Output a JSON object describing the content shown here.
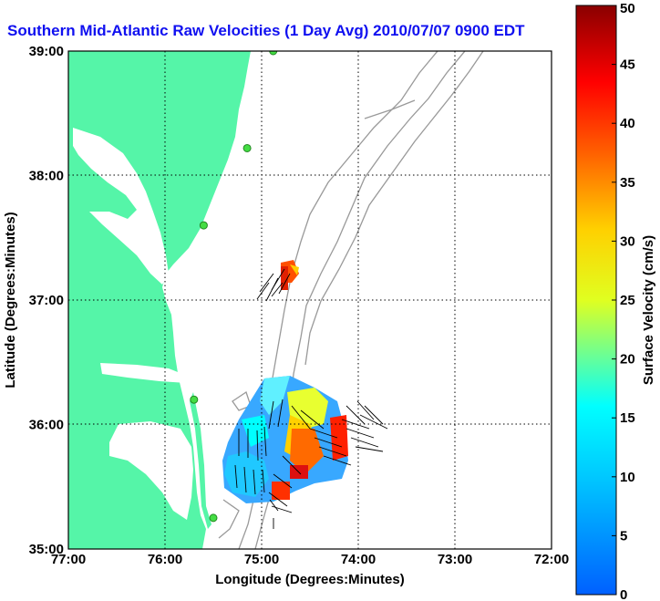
{
  "title": "Southern Mid-Atlantic Raw Velocities (1 Day Avg) 2010/07/07 0900 EDT",
  "map": {
    "x_axis": {
      "label": "Longitude (Degrees:Minutes)",
      "ticks": [
        "77:00",
        "76:00",
        "75:00",
        "74:00",
        "73:00",
        "72:00"
      ],
      "values": [
        -77,
        -76,
        -75,
        -74,
        -73,
        -72
      ]
    },
    "y_axis": {
      "label": "Latitude (Degrees:Minutes)",
      "ticks": [
        "39:00",
        "38:00",
        "37:00",
        "36:00",
        "35:00"
      ],
      "values": [
        39,
        38,
        37,
        36,
        35
      ]
    },
    "extent": {
      "lon": [
        -77,
        -72
      ],
      "lat": [
        35,
        39
      ]
    },
    "grid": "dotted",
    "colors": {
      "land": "#55f5a8",
      "water": "#ffffff",
      "bathymetry": "#999999",
      "arrows": "#000000",
      "station": "#44dd44"
    },
    "stations": [
      {
        "lon": -74.88,
        "lat": 39.0
      },
      {
        "lon": -75.15,
        "lat": 38.22
      },
      {
        "lon": -75.6,
        "lat": 37.6
      },
      {
        "lon": -75.7,
        "lat": 36.2
      },
      {
        "lon": -75.5,
        "lat": 35.25
      }
    ]
  },
  "colorbar": {
    "label": "Surface Velocity (cm/s)",
    "unit": "cm/s",
    "ticks": [
      "50",
      "45",
      "40",
      "35",
      "30",
      "25",
      "20",
      "15",
      "10",
      "5",
      "0"
    ],
    "range": [
      0,
      50
    ],
    "stops": [
      "#0000ff",
      "#00c8ff",
      "#00ffff",
      "#ffff00",
      "#ff8000",
      "#ff0000",
      "#800000"
    ]
  }
}
